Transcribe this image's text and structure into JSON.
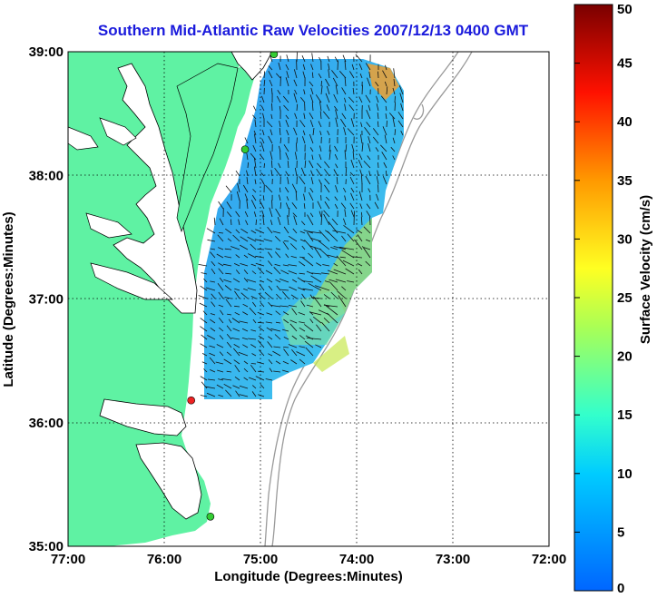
{
  "title": "Southern Mid-Atlantic Raw Velocities 2007/12/13 0400 GMT",
  "chart_data": {
    "type": "heatmap",
    "title": "Southern Mid-Atlantic Raw Velocities 2007/12/13 0400 GMT",
    "xlabel": "Longitude (Degrees:Minutes)",
    "ylabel": "Latitude (Degrees:Minutes)",
    "x_ticks": [
      "77:00",
      "76:00",
      "75:00",
      "74:00",
      "73:00",
      "72:00"
    ],
    "y_ticks": [
      "39:00",
      "38:00",
      "37:00",
      "36:00",
      "35:00"
    ],
    "xlim": [
      -77,
      -72
    ],
    "ylim": [
      35,
      39
    ],
    "grid": true,
    "colorbar": {
      "label": "Surface Velocity (cm/s)",
      "range": [
        0,
        50
      ],
      "ticks": [
        "50",
        "45",
        "40",
        "35",
        "30",
        "25",
        "20",
        "15",
        "10",
        "5",
        "0"
      ]
    },
    "stations": [
      {
        "lon": -74.86,
        "lat": 38.98,
        "color": "#33cc33"
      },
      {
        "lon": -75.16,
        "lat": 38.21,
        "color": "#33cc33"
      },
      {
        "lon": -75.72,
        "lat": 36.18,
        "color": "#ee2222"
      },
      {
        "lon": -75.52,
        "lat": 35.24,
        "color": "#33cc33"
      }
    ]
  },
  "colors": {
    "land": "#5ff2a3",
    "ocean": "#ffffff",
    "grid": "#000000",
    "bathymetry": "#999999",
    "title": "#1a1adc"
  }
}
